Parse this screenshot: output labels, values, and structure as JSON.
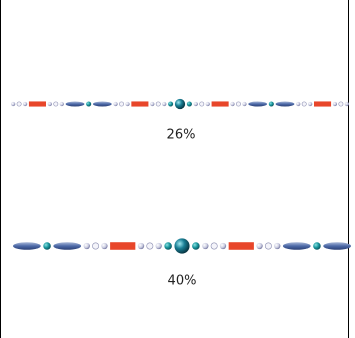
{
  "items": [
    {
      "label": "26%"
    },
    {
      "label": "40%"
    }
  ]
}
